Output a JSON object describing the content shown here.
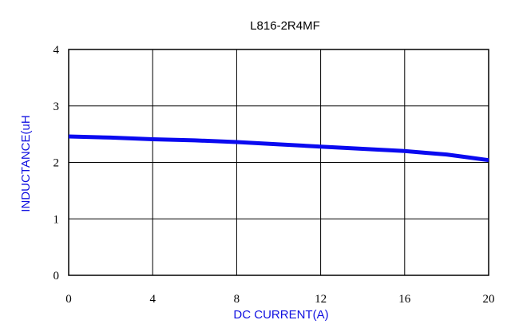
{
  "chart_data": {
    "type": "line",
    "title": "L816-2R4MF",
    "xlabel": "DC CURRENT(A)",
    "ylabel": "INDUCTANCE(uH",
    "xlim": [
      0,
      20
    ],
    "ylim": [
      0,
      4
    ],
    "xticks": [
      "0",
      "4",
      "8",
      "12",
      "16",
      "20"
    ],
    "yticks": [
      "0",
      "1",
      "2",
      "3",
      "4"
    ],
    "grid": true,
    "series": [
      {
        "x": [
          0,
          2,
          4,
          6,
          8,
          10,
          12,
          14,
          16,
          17,
          18,
          19,
          20
        ],
        "y": [
          2.46,
          2.44,
          2.41,
          2.39,
          2.36,
          2.32,
          2.28,
          2.24,
          2.2,
          2.17,
          2.14,
          2.09,
          2.04
        ]
      }
    ],
    "colors": {
      "line": "#0a0af0",
      "axis_label": "#1010e0",
      "grid": "#000000"
    }
  }
}
